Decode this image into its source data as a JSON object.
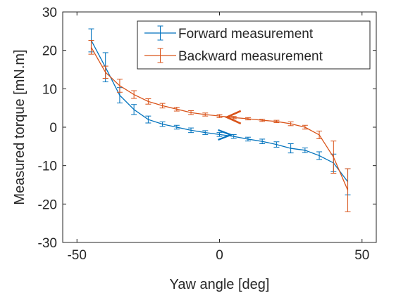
{
  "chart_data": {
    "type": "line",
    "xlabel": "Yaw angle [deg]",
    "ylabel": "Measured torque [mN.m]",
    "xlim": [
      -55,
      55
    ],
    "ylim": [
      -30,
      30
    ],
    "xticks": [
      -50,
      0,
      50
    ],
    "yticks": [
      -30,
      -20,
      -10,
      0,
      10,
      20,
      30
    ],
    "xtick_labels": [
      "-50",
      "0",
      "50"
    ],
    "ytick_labels": [
      "-30",
      "-20",
      "-10",
      "0",
      "10",
      "20",
      "30"
    ],
    "grid": false,
    "legend_position": "top-right",
    "error_bars": true,
    "series": [
      {
        "name": "Forward measurement",
        "color": "#0072BD",
        "direction_marker": "right-arrow",
        "x": [
          -45,
          -40,
          -35,
          -30,
          -25,
          -20,
          -15,
          -10,
          -5,
          0,
          5,
          10,
          15,
          20,
          25,
          30,
          35,
          40,
          45
        ],
        "y": [
          22.6,
          15.6,
          8.3,
          4.6,
          2.0,
          0.8,
          0.0,
          -0.8,
          -1.4,
          -1.9,
          -2.4,
          -3.1,
          -3.7,
          -4.5,
          -5.5,
          -6.0,
          -7.4,
          -9.3,
          -14.2
        ],
        "err": [
          3.0,
          3.8,
          2.0,
          1.3,
          0.9,
          0.6,
          0.5,
          0.6,
          0.5,
          0.5,
          0.5,
          0.5,
          0.6,
          0.7,
          1.2,
          0.6,
          1.0,
          2.3,
          3.4
        ]
      },
      {
        "name": "Backward measurement",
        "color": "#D95319",
        "direction_marker": "left-arrow",
        "x": [
          -45,
          -40,
          -35,
          -30,
          -25,
          -20,
          -15,
          -10,
          -5,
          0,
          5,
          10,
          15,
          20,
          25,
          30,
          35,
          40,
          45
        ],
        "y": [
          20.8,
          14.3,
          10.8,
          8.5,
          6.7,
          5.6,
          4.7,
          3.8,
          3.3,
          2.9,
          2.5,
          2.2,
          1.8,
          1.5,
          0.9,
          0.0,
          -2.0,
          -7.8,
          -16.4
        ],
        "err": [
          1.8,
          1.6,
          1.7,
          1.0,
          0.7,
          0.6,
          0.5,
          0.5,
          0.4,
          0.4,
          0.3,
          0.3,
          0.3,
          0.3,
          0.5,
          0.5,
          1.0,
          4.2,
          5.6
        ]
      }
    ]
  }
}
